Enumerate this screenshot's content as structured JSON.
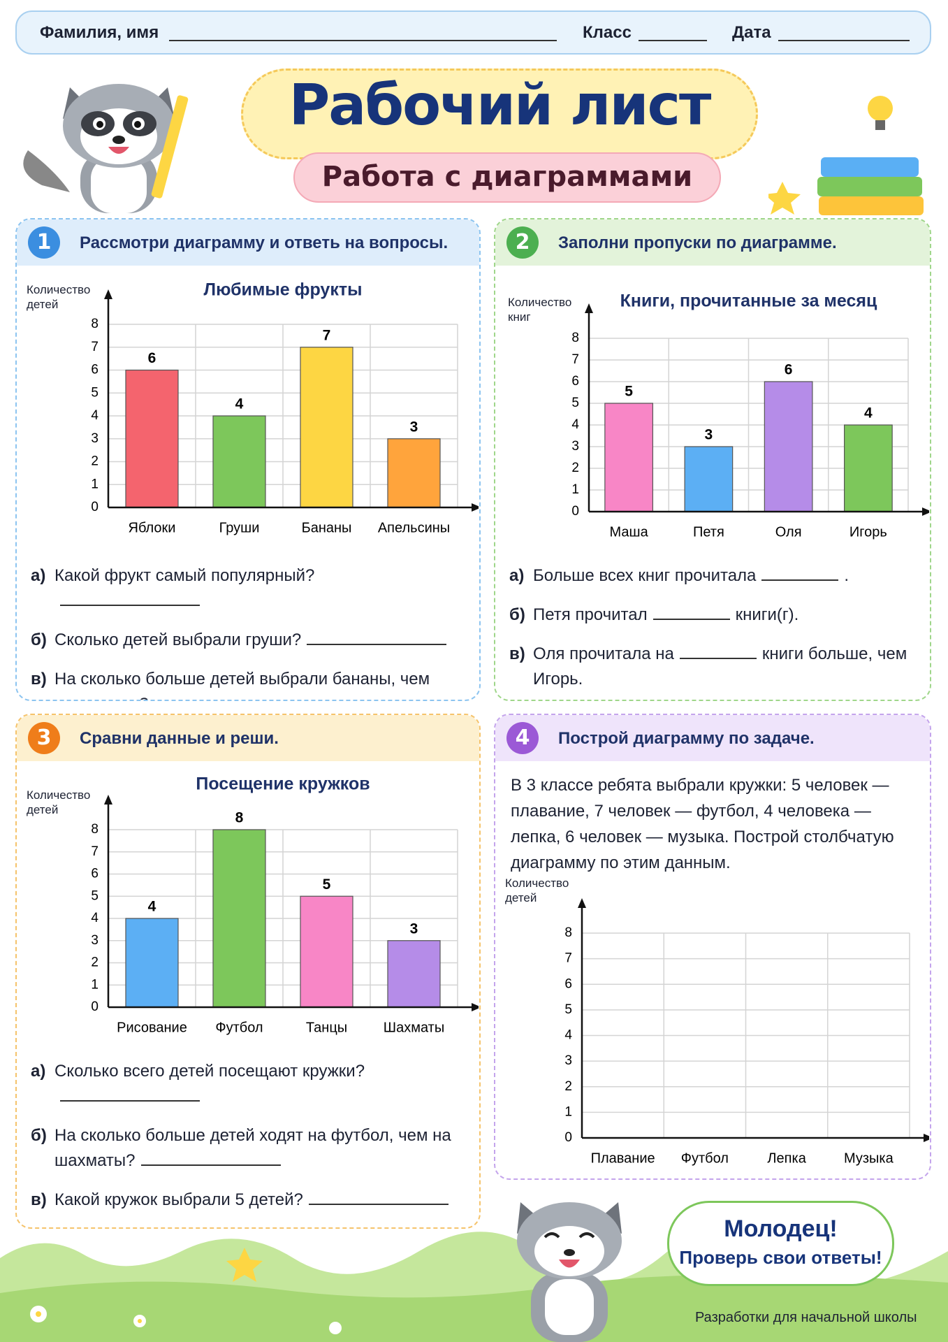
{
  "header": {
    "name_label": "Фамилия, имя",
    "class_label": "Класс",
    "date_label": "Дата"
  },
  "title": "Рабочий лист",
  "subtitle": "Работа с диаграммами",
  "sections": [
    {
      "number": "1",
      "title": "Рассмотри диаграмму и ответь на вопросы.",
      "chart": {
        "type": "bar",
        "title": "Любимые фрукты",
        "y_label": "Количество детей",
        "categories": [
          "Яблоки",
          "Груши",
          "Бананы",
          "Апельсины"
        ],
        "values": [
          6,
          4,
          7,
          3
        ],
        "colors": [
          "#f4646e",
          "#7dc75b",
          "#fdd643",
          "#ffa43c"
        ],
        "ylim": [
          0,
          8
        ],
        "yticks": [
          0,
          1,
          2,
          3,
          4,
          5,
          6,
          7,
          8
        ],
        "grid": true
      },
      "questions": [
        {
          "letter": "а)",
          "parts": [
            "Какой фрукт самый популярный?"
          ]
        },
        {
          "letter": "б)",
          "parts": [
            "Сколько детей выбрали груши?"
          ]
        },
        {
          "letter": "в)",
          "parts": [
            "На сколько больше детей выбрали бананы, чем апельсины?"
          ]
        }
      ]
    },
    {
      "number": "2",
      "title": "Заполни пропуски по диаграмме.",
      "chart": {
        "type": "bar",
        "title": "Книги, прочитанные за месяц",
        "y_label": "Количество книг",
        "categories": [
          "Маша",
          "Петя",
          "Оля",
          "Игорь"
        ],
        "values": [
          5,
          3,
          6,
          4
        ],
        "colors": [
          "#f886c6",
          "#5caff4",
          "#b58ce8",
          "#7dc75b"
        ],
        "ylim": [
          0,
          8
        ],
        "yticks": [
          0,
          1,
          2,
          3,
          4,
          5,
          6,
          7,
          8
        ],
        "grid": true
      },
      "questions": [
        {
          "letter": "а)",
          "parts": [
            "Больше всех книг прочитала",
            "."
          ]
        },
        {
          "letter": "б)",
          "parts": [
            "Петя прочитал",
            "книги(г)."
          ]
        },
        {
          "letter": "в)",
          "parts": [
            "Оля прочитала на",
            "книги больше, чем Игорь."
          ]
        }
      ]
    },
    {
      "number": "3",
      "title": "Сравни данные и реши.",
      "chart": {
        "type": "bar",
        "title": "Посещение кружков",
        "y_label": "Количество детей",
        "categories": [
          "Рисование",
          "Футбол",
          "Танцы",
          "Шахматы"
        ],
        "values": [
          4,
          8,
          5,
          3
        ],
        "colors": [
          "#5caff4",
          "#7dc75b",
          "#f886c6",
          "#b58ce8"
        ],
        "ylim": [
          0,
          8
        ],
        "yticks": [
          0,
          1,
          2,
          3,
          4,
          5,
          6,
          7,
          8
        ],
        "grid": true
      },
      "questions": [
        {
          "letter": "а)",
          "parts": [
            "Сколько всего детей посещают кружки?"
          ]
        },
        {
          "letter": "б)",
          "parts": [
            "На сколько больше детей ходят на футбол, чем на шахматы?"
          ]
        },
        {
          "letter": "в)",
          "parts": [
            "Какой кружок выбрали 5 детей?"
          ]
        }
      ]
    },
    {
      "number": "4",
      "title": "Построй диаграмму по задаче.",
      "text": "В 3 классе ребята выбрали кружки: 5 человек — плавание, 7 человек — футбол, 4 человека — лепка, 6 человек — музыка. Построй столбчатую диаграмму по этим данным.",
      "chart": {
        "type": "bar",
        "y_label": "Количество детей",
        "categories": [
          "Плавание",
          "Футбол",
          "Лепка",
          "Музыка"
        ],
        "ylim": [
          0,
          8
        ],
        "yticks": [
          0,
          1,
          2,
          3,
          4,
          5,
          6,
          7,
          8
        ],
        "grid": true
      }
    }
  ],
  "footer": {
    "praise": "Молодец!",
    "check": "Проверь свои ответы!",
    "credit": "Разработки для начальной школы"
  }
}
